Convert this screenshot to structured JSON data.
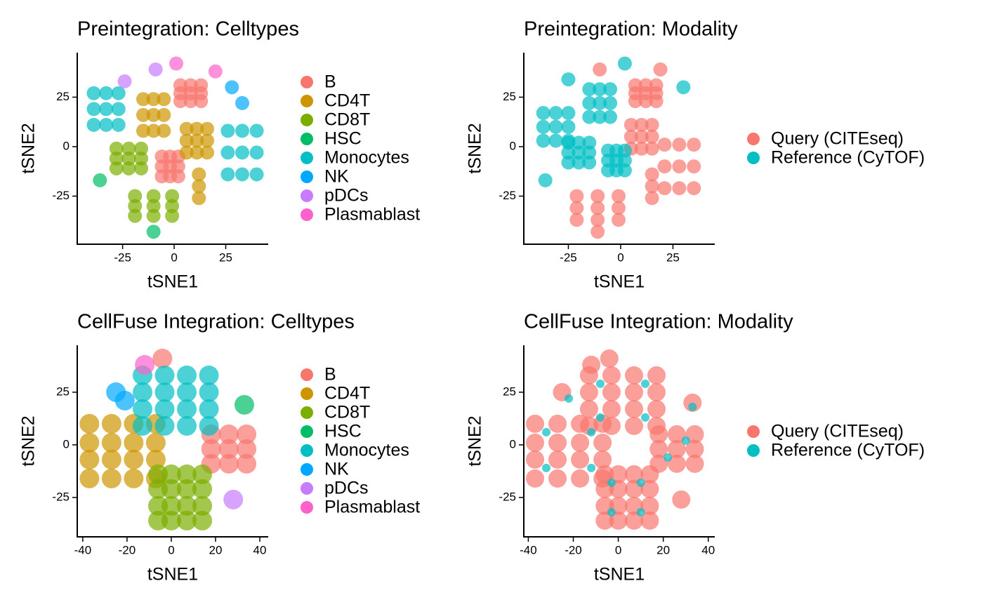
{
  "chart_data": [
    {
      "type": "scatter",
      "title": "Preintegration: Celltypes",
      "xlabel": "tSNE1",
      "ylabel": "tSNE2",
      "xlim": [
        -47,
        45.6
      ],
      "ylim": [
        -49.3,
        47.5
      ],
      "xticks": [
        -25,
        0,
        25
      ],
      "yticks": [
        -25,
        0,
        25
      ],
      "legend": "right",
      "series": [
        {
          "name": "B",
          "color": "#F8766D",
          "x": [
            3,
            8,
            13,
            3,
            8,
            13,
            3,
            8,
            13,
            -6,
            -2,
            2,
            -6,
            -2,
            2,
            -6,
            -2,
            2
          ],
          "y": [
            23,
            23,
            23,
            27,
            27,
            27,
            31,
            31,
            31,
            -15,
            -15,
            -15,
            -10,
            -10,
            -10,
            -5,
            -5,
            -5
          ]
        },
        {
          "name": "CD4T",
          "color": "#CD9600",
          "x": [
            -15,
            -10,
            -5,
            -15,
            -10,
            -5,
            -15,
            -10,
            -5,
            6,
            11,
            16,
            6,
            11,
            16,
            6,
            11,
            16,
            12,
            12,
            12
          ],
          "y": [
            8,
            8,
            8,
            16,
            16,
            16,
            24,
            24,
            24,
            -3,
            -3,
            -3,
            3,
            3,
            3,
            9,
            9,
            9,
            -26,
            -20,
            -14
          ]
        },
        {
          "name": "CD8T",
          "color": "#7CAE00",
          "x": [
            -28,
            -22,
            -16,
            -28,
            -22,
            -16,
            -28,
            -22,
            -16,
            -19,
            -10,
            -1,
            -19,
            -10,
            -1,
            -19,
            -10,
            -1
          ],
          "y": [
            -11,
            -11,
            -11,
            -6,
            -6,
            -6,
            -1,
            -1,
            -1,
            -35,
            -35,
            -35,
            -30,
            -30,
            -30,
            -25,
            -25,
            -25
          ]
        },
        {
          "name": "HSC",
          "color": "#00BE67",
          "x": [
            -36,
            -10
          ],
          "y": [
            -17,
            -43
          ]
        },
        {
          "name": "Monocytes",
          "color": "#00BFC4",
          "x": [
            -39,
            -33,
            -27,
            -39,
            -33,
            -27,
            -39,
            -33,
            -27,
            26,
            33,
            40,
            26,
            33,
            40,
            26,
            33,
            40
          ],
          "y": [
            11,
            11,
            11,
            19,
            19,
            19,
            27,
            27,
            27,
            -14,
            -14,
            -14,
            -3,
            -3,
            -3,
            8,
            8,
            8
          ]
        },
        {
          "name": "NK",
          "color": "#00A9FF",
          "x": [
            28,
            33
          ],
          "y": [
            30,
            22
          ]
        },
        {
          "name": "pDCs",
          "color": "#C77CFF",
          "x": [
            -24,
            -9
          ],
          "y": [
            33,
            39
          ]
        },
        {
          "name": "Plasmablast",
          "color": "#FF61CC",
          "x": [
            1,
            20
          ],
          "y": [
            42,
            38
          ]
        }
      ]
    },
    {
      "type": "scatter",
      "title": "Preintegration: Modality",
      "xlabel": "tSNE1",
      "ylabel": "tSNE2",
      "xlim": [
        -46.3,
        45
      ],
      "ylim": [
        -49.3,
        47.5
      ],
      "xticks": [
        -25,
        0,
        25
      ],
      "yticks": [
        -25,
        0,
        25
      ],
      "legend": "right",
      "series": [
        {
          "name": "Query (CITEseq)",
          "color": "#F8766D",
          "x": [
            7,
            12,
            17,
            7,
            12,
            17,
            7,
            12,
            17,
            5,
            10,
            15,
            5,
            10,
            15,
            5,
            10,
            15,
            21,
            28,
            35,
            21,
            28,
            35,
            21,
            28,
            35,
            -21,
            -11,
            -1,
            -21,
            -11,
            -1,
            -21,
            -11,
            -1,
            15,
            15,
            15,
            -10,
            -11,
            19
          ],
          "y": [
            23,
            23,
            23,
            27,
            27,
            27,
            31,
            31,
            31,
            -1,
            -1,
            -1,
            5,
            5,
            5,
            11,
            11,
            11,
            -21,
            -21,
            -21,
            -10,
            -10,
            -10,
            1,
            1,
            1,
            -37,
            -37,
            -37,
            -31,
            -31,
            -31,
            -25,
            -25,
            -25,
            -26,
            -20,
            -14,
            39,
            -43,
            39
          ]
        },
        {
          "name": "Reference (CyTOF)",
          "color": "#00BFC4",
          "x": [
            -37,
            -31,
            -25,
            -37,
            -31,
            -25,
            -37,
            -31,
            -25,
            -25,
            -20,
            -15,
            -25,
            -20,
            -15,
            -25,
            -20,
            -15,
            -15,
            -10,
            -5,
            -15,
            -10,
            -5,
            -15,
            -10,
            -5,
            -6,
            -2,
            2,
            -6,
            -2,
            2,
            -6,
            -2,
            2,
            -25,
            2,
            30,
            -36
          ],
          "y": [
            3,
            3,
            3,
            10,
            10,
            10,
            17,
            17,
            17,
            -8,
            -8,
            -8,
            -3,
            -3,
            -3,
            2,
            2,
            2,
            15,
            15,
            15,
            22,
            22,
            22,
            29,
            29,
            29,
            -12,
            -12,
            -12,
            -7,
            -7,
            -7,
            -2,
            -2,
            -2,
            34,
            42,
            30,
            -17
          ]
        }
      ]
    },
    {
      "type": "scatter",
      "title": "CellFuse Integration: Celltypes",
      "xlabel": "tSNE1",
      "ylabel": "tSNE2",
      "xlim": [
        -42.5,
        43.8
      ],
      "ylim": [
        -43.7,
        47.3
      ],
      "xticks": [
        -40,
        -20,
        0,
        20,
        40
      ],
      "yticks": [
        -25,
        0,
        25
      ],
      "legend": "right",
      "series": [
        {
          "name": "B",
          "color": "#F8766D",
          "x": [
            18,
            26,
            34,
            18,
            26,
            34,
            18,
            26,
            34,
            -4
          ],
          "y": [
            -9,
            -9,
            -9,
            -2,
            -2,
            -2,
            5,
            5,
            5,
            41
          ]
        },
        {
          "name": "CD4T",
          "color": "#CD9600",
          "x": [
            -37,
            -27,
            -17,
            -7,
            -37,
            -27,
            -17,
            -7,
            -37,
            -27,
            -17,
            -7,
            -37,
            -27,
            -17,
            -7
          ],
          "y": [
            -16,
            -16,
            -16,
            -16,
            -7,
            -7,
            -7,
            -7,
            1,
            1,
            1,
            1,
            10,
            10,
            10,
            10
          ]
        },
        {
          "name": "CD8T",
          "color": "#7CAE00",
          "x": [
            -6,
            0,
            7,
            14,
            -6,
            0,
            7,
            14,
            -6,
            0,
            7,
            14,
            -6,
            0,
            7,
            14
          ],
          "y": [
            -36,
            -36,
            -36,
            -36,
            -29,
            -29,
            -29,
            -29,
            -21,
            -21,
            -21,
            -21,
            -14,
            -14,
            -14,
            -14
          ]
        },
        {
          "name": "HSC",
          "color": "#00BE67",
          "x": [
            33
          ],
          "y": [
            19
          ]
        },
        {
          "name": "Monocytes",
          "color": "#00BFC4",
          "x": [
            -13,
            -3,
            7,
            17,
            -13,
            -3,
            7,
            17,
            -13,
            -3,
            7,
            17,
            -13,
            -3,
            7,
            17
          ],
          "y": [
            9,
            9,
            9,
            9,
            17,
            17,
            17,
            17,
            25,
            25,
            25,
            25,
            33,
            33,
            33,
            33
          ]
        },
        {
          "name": "NK",
          "color": "#00A9FF",
          "x": [
            -25,
            -21
          ],
          "y": [
            25,
            21
          ]
        },
        {
          "name": "pDCs",
          "color": "#C77CFF",
          "x": [
            28
          ],
          "y": [
            -26
          ]
        },
        {
          "name": "Plasmablast",
          "color": "#FF61CC",
          "x": [
            -12
          ],
          "y": [
            38
          ]
        }
      ]
    },
    {
      "type": "scatter",
      "title": "CellFuse Integration: Modality",
      "xlabel": "tSNE1",
      "ylabel": "tSNE2",
      "xlim": [
        -42,
        42.9
      ],
      "ylim": [
        -43.7,
        47.3
      ],
      "xticks": [
        -40,
        -20,
        0,
        20,
        40
      ],
      "yticks": [
        -25,
        0,
        25
      ],
      "legend": "right",
      "series": [
        {
          "name": "Query (CITEseq)",
          "color": "#F8766D",
          "x": [
            -13,
            -3,
            7,
            17,
            -13,
            -3,
            7,
            17,
            -13,
            -3,
            7,
            17,
            -13,
            -3,
            7,
            17,
            -37,
            -27,
            -17,
            -7,
            -37,
            -27,
            -17,
            -7,
            -37,
            -27,
            -17,
            -7,
            -37,
            -27,
            -17,
            -7,
            -6,
            0,
            7,
            14,
            -6,
            0,
            7,
            14,
            -6,
            0,
            7,
            14,
            -6,
            0,
            7,
            14,
            18,
            26,
            34,
            18,
            26,
            34,
            18,
            26,
            34,
            -12,
            -4,
            28,
            -25,
            33
          ],
          "y": [
            9,
            9,
            9,
            9,
            17,
            17,
            17,
            17,
            25,
            25,
            25,
            25,
            33,
            33,
            33,
            33,
            -16,
            -16,
            -16,
            -16,
            -7,
            -7,
            -7,
            -7,
            1,
            1,
            1,
            1,
            10,
            10,
            10,
            10,
            -36,
            -36,
            -36,
            -36,
            -29,
            -29,
            -29,
            -29,
            -21,
            -21,
            -21,
            -21,
            -14,
            -14,
            -14,
            -14,
            -9,
            -9,
            -9,
            -2,
            -2,
            -2,
            5,
            5,
            5,
            38,
            41,
            -26,
            25,
            20
          ]
        },
        {
          "name": "Reference (CyTOF)",
          "color": "#00BFC4",
          "x": [
            -8,
            12,
            -8,
            12,
            -32,
            -12,
            -32,
            -12,
            -3,
            10,
            -3,
            10,
            22,
            30,
            -22,
            33
          ],
          "y": [
            13,
            13,
            29,
            29,
            -11,
            -11,
            6,
            6,
            -32,
            -32,
            -18,
            -18,
            -6,
            2,
            22,
            18
          ]
        }
      ]
    }
  ]
}
